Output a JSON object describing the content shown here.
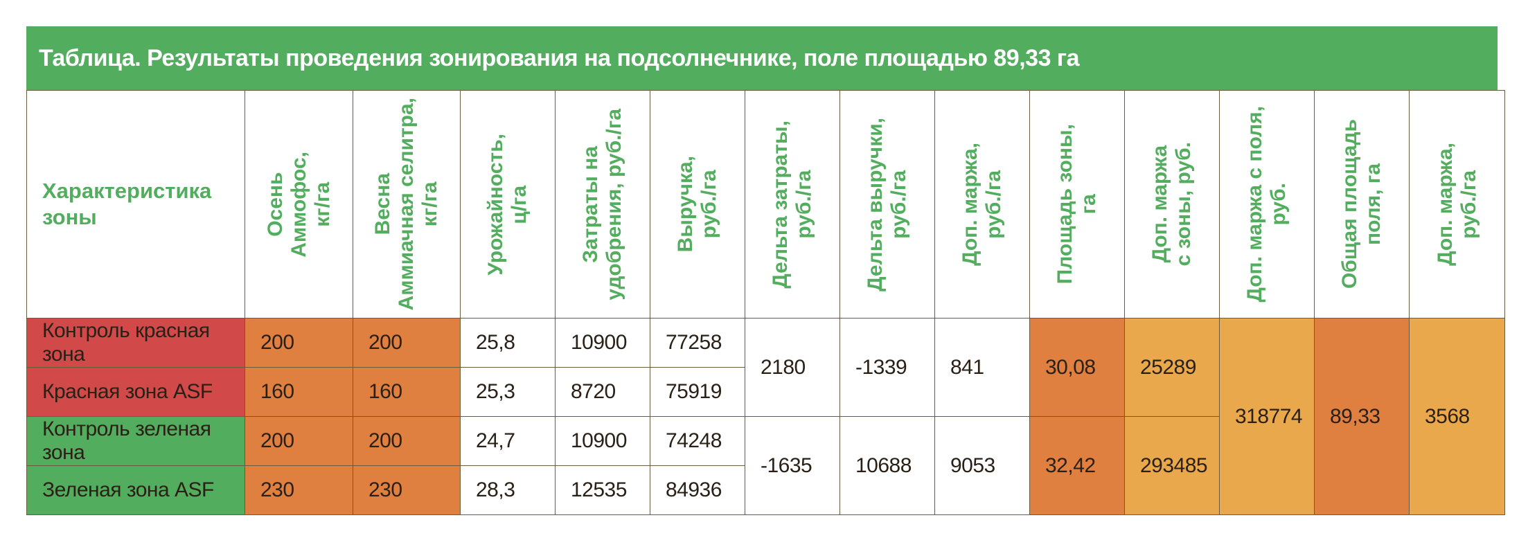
{
  "title": "Таблица. Результаты проведения зонирования на подсолнечнике, поле площадью 89,33 га",
  "headers": {
    "zone": "Характеристика\nзоны",
    "autumn": "Осень\nАммофос,\nкг/га",
    "spring": "Весна\nАммиачная селитра,\nкг/га",
    "yield": "Урожайность,\nц/га",
    "cost": "Затраты на\nудобрения, руб./га",
    "revenue": "Выручка,\nруб./га",
    "delta_cost": "Дельта затраты,\nруб./га",
    "delta_revenue": "Дельта выручки,\nруб./га",
    "extra_margin": "Доп. маржа,\nруб./га",
    "zone_area": "Площадь зоны,\nга",
    "zone_margin": "Доп. маржа\nс зоны, руб.",
    "field_margin": "Доп. маржа с поля,\nруб.",
    "total_area": "Общая площадь\nполя, га",
    "extra_margin_ha": "Доп. маржа,\nруб./га"
  },
  "rows": [
    {
      "zone": "Контроль красная зона",
      "autumn": "200",
      "spring": "200",
      "yield": "25,8",
      "cost": "10900",
      "revenue": "77258"
    },
    {
      "zone": "Красная зона ASF",
      "autumn": "160",
      "spring": "160",
      "yield": "25,3",
      "cost": "8720",
      "revenue": "75919"
    },
    {
      "zone": "Контроль зеленая зона",
      "autumn": "200",
      "spring": "200",
      "yield": "24,7",
      "cost": "10900",
      "revenue": "74248"
    },
    {
      "zone": "Зеленая зона ASF",
      "autumn": "230",
      "spring": "230",
      "yield": "28,3",
      "cost": "12535",
      "revenue": "84936"
    }
  ],
  "groups": [
    {
      "delta_cost": "2180",
      "delta_revenue": "-1339",
      "extra_margin": "841",
      "zone_area": "30,08",
      "zone_margin": "25289"
    },
    {
      "delta_cost": "-1635",
      "delta_revenue": "10688",
      "extra_margin": "9053",
      "zone_area": "32,42",
      "zone_margin": "293485"
    }
  ],
  "totals": {
    "field_margin": "318774",
    "total_area": "89,33",
    "extra_margin_ha": "3568"
  },
  "colors": {
    "green": "#53ad5e",
    "red": "#d2494a",
    "orange": "#df7f40",
    "yellow": "#e9a84b"
  }
}
